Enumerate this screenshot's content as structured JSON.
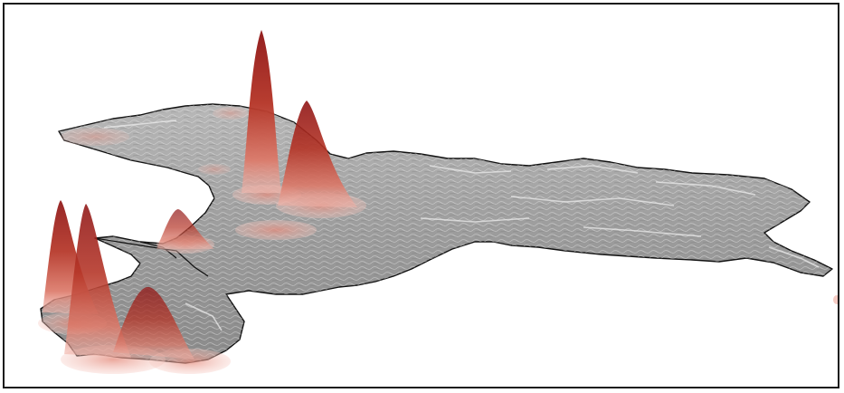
{
  "map": {
    "type": "3d-terrain-density",
    "colors": {
      "terrain": "#9a9a9a",
      "terrain_highlight": "#d8d8d8",
      "coastline": "#111111",
      "peak_dark": "#8e1414",
      "peak_mid": "#c64a3a",
      "peak_light": "#f3b8ae",
      "frame": "#1a1a1a"
    },
    "peaks": [
      {
        "id": "north-tall",
        "relative_height": 1.0
      },
      {
        "id": "north-right",
        "relative_height": 0.72
      },
      {
        "id": "west-tall",
        "relative_height": 0.82
      },
      {
        "id": "west-second",
        "relative_height": 0.8
      },
      {
        "id": "south-mid",
        "relative_height": 0.35
      },
      {
        "id": "channel-small",
        "relative_height": 0.25
      },
      {
        "id": "central-flat",
        "relative_height": 0.05
      }
    ]
  }
}
